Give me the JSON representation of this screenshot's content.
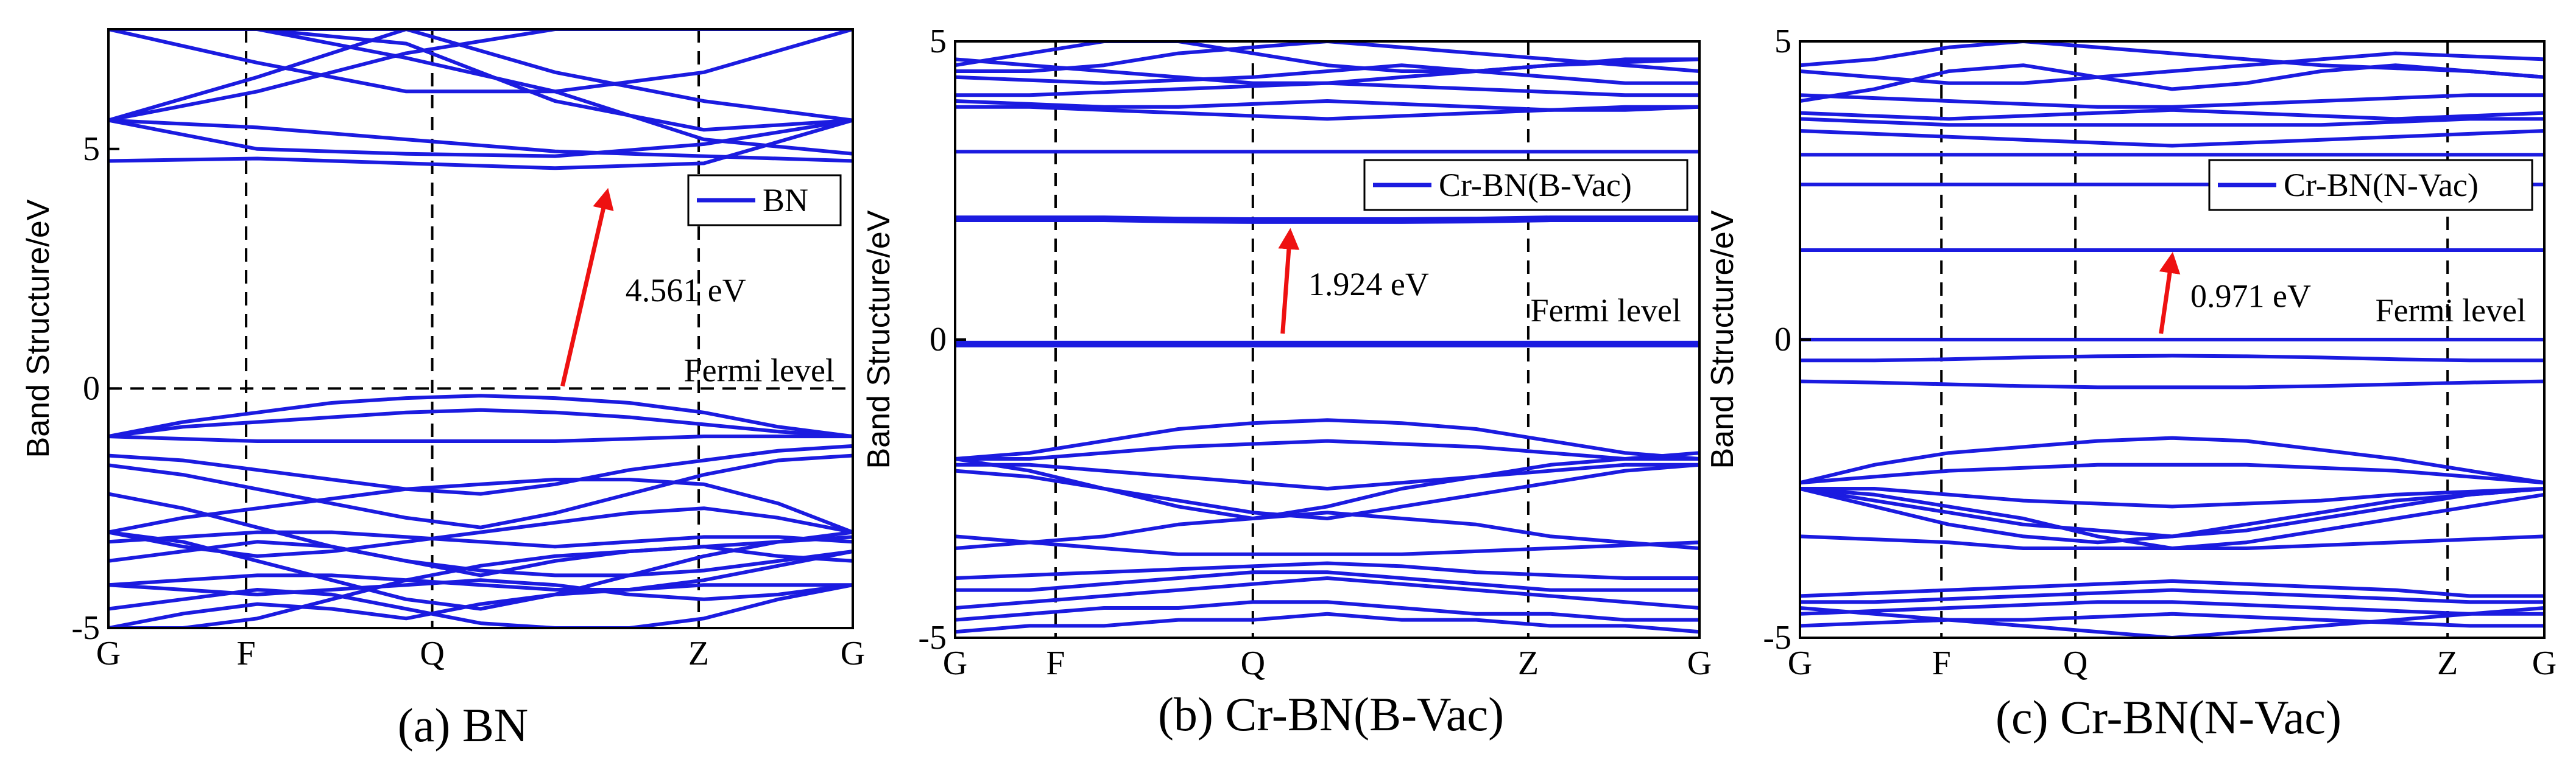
{
  "colors": {
    "band": "#1b1be0",
    "arrow": "#ee1111",
    "axis": "#000000"
  },
  "chart_data": [
    {
      "type": "line",
      "caption": "(a) BN",
      "ylabel": "Band Structure/eV",
      "xticks": [
        "G",
        "F",
        "Q",
        "Z",
        "G"
      ],
      "xtick_positions": [
        0,
        0.185,
        0.435,
        0.793,
        1
      ],
      "ylim": [
        -5,
        7.5
      ],
      "yticks": [
        -5,
        0,
        5
      ],
      "legend": {
        "label": "BN",
        "position": "top-right"
      },
      "fermi_line": true,
      "fermi_label": "Fermi level",
      "gap_label": "4.561 eV",
      "gap_arrow": {
        "x1": 0.61,
        "y1": 0.05,
        "x2": 0.67,
        "y2": 4.1
      },
      "bands": [
        [
          5.6,
          5.45,
          5.2,
          4.95,
          4.85,
          4.75
        ],
        [
          4.75,
          4.8,
          4.7,
          4.6,
          4.7,
          5.6
        ],
        [
          5.6,
          5.0,
          4.9,
          4.85,
          5.1,
          5.6
        ],
        [
          5.6,
          6.2,
          7.0,
          7.5,
          7.5,
          7.5
        ],
        [
          5.6,
          6.5,
          7.5,
          7.5,
          7.5,
          7.5
        ],
        [
          7.5,
          7.5,
          6.9,
          6.2,
          5.2,
          4.9
        ],
        [
          7.5,
          7.5,
          7.2,
          6.0,
          5.4,
          5.6
        ],
        [
          7.5,
          6.8,
          6.2,
          6.2,
          6.6,
          7.5
        ],
        [
          7.5,
          7.5,
          7.5,
          6.6,
          6.0,
          5.6
        ],
        [
          -1.0,
          -0.7,
          -0.5,
          -0.3,
          -0.2,
          -0.15,
          -0.2,
          -0.3,
          -0.5,
          -0.8,
          -1.0
        ],
        [
          -1.0,
          -0.8,
          -0.7,
          -0.6,
          -0.5,
          -0.45,
          -0.5,
          -0.6,
          -0.75,
          -0.9,
          -1.0
        ],
        [
          -1.0,
          -1.05,
          -1.1,
          -1.1,
          -1.1,
          -1.1,
          -1.1,
          -1.05,
          -1.0,
          -1.0,
          -1.0
        ],
        [
          -1.4,
          -1.5,
          -1.7,
          -1.9,
          -2.1,
          -2.2,
          -2.0,
          -1.7,
          -1.5,
          -1.3,
          -1.2
        ],
        [
          -1.6,
          -1.8,
          -2.1,
          -2.4,
          -2.7,
          -2.9,
          -2.6,
          -2.2,
          -1.8,
          -1.5,
          -1.4
        ],
        [
          -3.0,
          -2.7,
          -2.5,
          -2.3,
          -2.1,
          -2.0,
          -1.9,
          -1.9,
          -2.0,
          -2.4,
          -3.0
        ],
        [
          -3.0,
          -3.3,
          -3.5,
          -3.4,
          -3.2,
          -3.0,
          -2.8,
          -2.6,
          -2.5,
          -2.7,
          -3.0
        ],
        [
          -3.2,
          -3.1,
          -3.0,
          -3.0,
          -3.1,
          -3.2,
          -3.3,
          -3.2,
          -3.1,
          -3.1,
          -3.2
        ],
        [
          -3.0,
          -3.2,
          -3.6,
          -4.0,
          -4.4,
          -4.6,
          -4.3,
          -3.9,
          -3.5,
          -3.2,
          -3.0
        ],
        [
          -3.6,
          -3.4,
          -3.2,
          -3.3,
          -3.6,
          -3.9,
          -3.6,
          -3.4,
          -3.3,
          -3.5,
          -3.6
        ],
        [
          -4.1,
          -4.0,
          -3.9,
          -3.9,
          -4.0,
          -4.1,
          -4.2,
          -4.2,
          -4.1,
          -4.1,
          -4.1
        ],
        [
          -4.1,
          -4.2,
          -4.3,
          -4.2,
          -4.1,
          -4.0,
          -4.1,
          -4.3,
          -4.4,
          -4.3,
          -4.1
        ],
        [
          -4.6,
          -4.4,
          -4.2,
          -4.3,
          -4.6,
          -4.9,
          -5.0,
          -5.0,
          -4.8,
          -4.4,
          -4.1
        ],
        [
          -5.0,
          -4.7,
          -4.5,
          -4.6,
          -4.8,
          -4.5,
          -4.3,
          -4.2,
          -4.0,
          -3.7,
          -3.4
        ],
        [
          -5.0,
          -5.0,
          -4.8,
          -4.4,
          -4.0,
          -3.7,
          -3.5,
          -3.4,
          -3.3,
          -3.2,
          -3.1
        ],
        [
          -2.2,
          -2.5,
          -2.9,
          -3.3,
          -3.6,
          -3.8,
          -3.9,
          -3.9,
          -3.8,
          -3.6,
          -3.4
        ]
      ]
    },
    {
      "type": "line",
      "caption": "(b) Cr-BN(B-Vac)",
      "ylabel": "Band Structure/eV",
      "xticks": [
        "G",
        "F",
        "Q",
        "Z",
        "G"
      ],
      "xtick_positions": [
        0,
        0.135,
        0.4,
        0.77,
        1
      ],
      "ylim": [
        -5,
        5
      ],
      "yticks": [
        -5,
        0,
        5
      ],
      "legend": {
        "label": "Cr-BN(B-Vac)",
        "position": "top-right"
      },
      "fermi_line": false,
      "fermi_label": "Fermi level",
      "gap_label": "1.924 eV",
      "gap_arrow": {
        "x1": 0.44,
        "y1": 0.1,
        "x2": 0.45,
        "y2": 1.8
      },
      "bands": [
        [
          -0.1,
          -0.1,
          -0.1,
          -0.1,
          -0.1,
          -0.1,
          -0.1,
          -0.1,
          -0.1,
          -0.1,
          -0.1
        ],
        [
          -0.05,
          -0.05,
          -0.05,
          -0.05,
          -0.05,
          -0.05,
          -0.05,
          -0.05,
          -0.05,
          -0.05,
          -0.05
        ],
        [
          2.0,
          2.0,
          2.0,
          1.98,
          1.97,
          1.97,
          1.97,
          1.98,
          2.0,
          2.0,
          2.0
        ],
        [
          2.05,
          2.05,
          2.05,
          2.03,
          2.02,
          2.02,
          2.02,
          2.03,
          2.05,
          2.05,
          2.05
        ],
        [
          3.15,
          3.15,
          3.15,
          3.15,
          3.15,
          3.15,
          3.15,
          3.15,
          3.15,
          3.15,
          3.15
        ],
        [
          3.9,
          3.9,
          3.85,
          3.8,
          3.75,
          3.7,
          3.75,
          3.8,
          3.85,
          3.9,
          3.9
        ],
        [
          4.0,
          3.95,
          3.9,
          3.9,
          3.95,
          4.0,
          3.95,
          3.9,
          3.85,
          3.85,
          3.9
        ],
        [
          4.1,
          4.1,
          4.15,
          4.2,
          4.25,
          4.3,
          4.25,
          4.2,
          4.15,
          4.1,
          4.1
        ],
        [
          4.4,
          4.35,
          4.3,
          4.35,
          4.4,
          4.5,
          4.6,
          4.5,
          4.4,
          4.3,
          4.3
        ],
        [
          4.5,
          4.5,
          4.6,
          4.8,
          4.9,
          5.0,
          4.9,
          4.8,
          4.7,
          4.6,
          4.5
        ],
        [
          4.6,
          4.8,
          5.0,
          5.0,
          4.8,
          4.6,
          4.5,
          4.5,
          4.6,
          4.65,
          4.7
        ],
        [
          4.7,
          4.6,
          4.5,
          4.4,
          4.3,
          4.3,
          4.4,
          4.5,
          4.6,
          4.7,
          4.7
        ],
        [
          -2.0,
          -1.9,
          -1.7,
          -1.5,
          -1.4,
          -1.35,
          -1.4,
          -1.5,
          -1.7,
          -1.9,
          -2.0
        ],
        [
          -2.0,
          -2.0,
          -1.9,
          -1.8,
          -1.75,
          -1.7,
          -1.75,
          -1.8,
          -1.9,
          -2.0,
          -2.0
        ],
        [
          -2.1,
          -2.1,
          -2.2,
          -2.3,
          -2.4,
          -2.5,
          -2.4,
          -2.3,
          -2.2,
          -2.1,
          -2.1
        ],
        [
          -2.2,
          -2.3,
          -2.5,
          -2.7,
          -2.9,
          -3.0,
          -2.8,
          -2.6,
          -2.4,
          -2.2,
          -2.1
        ],
        [
          -2.0,
          -2.2,
          -2.5,
          -2.8,
          -3.0,
          -2.8,
          -2.5,
          -2.3,
          -2.1,
          -2.0,
          -1.9
        ],
        [
          -3.5,
          -3.4,
          -3.3,
          -3.1,
          -3.0,
          -2.9,
          -3.0,
          -3.1,
          -3.3,
          -3.4,
          -3.5
        ],
        [
          -3.3,
          -3.4,
          -3.5,
          -3.6,
          -3.6,
          -3.6,
          -3.6,
          -3.55,
          -3.5,
          -3.45,
          -3.4
        ],
        [
          -4.0,
          -3.95,
          -3.9,
          -3.85,
          -3.8,
          -3.75,
          -3.8,
          -3.9,
          -3.95,
          -4.0,
          -4.0
        ],
        [
          -4.2,
          -4.2,
          -4.1,
          -4.0,
          -3.9,
          -3.9,
          -4.0,
          -4.1,
          -4.2,
          -4.2,
          -4.2
        ],
        [
          -4.5,
          -4.4,
          -4.3,
          -4.2,
          -4.1,
          -4.0,
          -4.1,
          -4.2,
          -4.3,
          -4.4,
          -4.5
        ],
        [
          -4.7,
          -4.6,
          -4.5,
          -4.5,
          -4.4,
          -4.4,
          -4.5,
          -4.6,
          -4.6,
          -4.7,
          -4.7
        ],
        [
          -4.9,
          -4.8,
          -4.8,
          -4.7,
          -4.7,
          -4.6,
          -4.7,
          -4.7,
          -4.8,
          -4.8,
          -4.9
        ]
      ]
    },
    {
      "type": "line",
      "caption": "(c) Cr-BN(N-Vac)",
      "ylabel": "Band Structure/eV",
      "xticks": [
        "G",
        "F",
        "Q",
        "Z",
        "G"
      ],
      "xtick_positions": [
        0,
        0.19,
        0.37,
        0.87,
        1
      ],
      "ylim": [
        -5,
        5
      ],
      "yticks": [
        -5,
        0,
        5
      ],
      "legend": {
        "label": "Cr-BN(N-Vac)",
        "position": "top-right"
      },
      "fermi_line": false,
      "fermi_label": "Fermi level",
      "gap_label": "0.971 eV",
      "gap_arrow": {
        "x1": 0.485,
        "y1": 0.1,
        "x2": 0.5,
        "y2": 1.4
      },
      "bands": [
        [
          0.0,
          0.0,
          0.0,
          0.0,
          0.0,
          0.0,
          0.0,
          0.0,
          0.0,
          0.0,
          0.0
        ],
        [
          -0.35,
          -0.35,
          -0.33,
          -0.3,
          -0.28,
          -0.27,
          -0.28,
          -0.3,
          -0.33,
          -0.35,
          -0.35
        ],
        [
          -0.7,
          -0.72,
          -0.75,
          -0.78,
          -0.8,
          -0.8,
          -0.8,
          -0.78,
          -0.75,
          -0.72,
          -0.7
        ],
        [
          1.5,
          1.5,
          1.5,
          1.5,
          1.5,
          1.5,
          1.5,
          1.5,
          1.5,
          1.5,
          1.5
        ],
        [
          2.6,
          2.6,
          2.6,
          2.6,
          2.6,
          2.6,
          2.6,
          2.6,
          2.6,
          2.6,
          2.6
        ],
        [
          3.1,
          3.1,
          3.1,
          3.1,
          3.1,
          3.1,
          3.1,
          3.1,
          3.1,
          3.1,
          3.1
        ],
        [
          3.5,
          3.45,
          3.4,
          3.35,
          3.3,
          3.25,
          3.3,
          3.35,
          3.4,
          3.45,
          3.5
        ],
        [
          3.7,
          3.65,
          3.6,
          3.6,
          3.6,
          3.6,
          3.6,
          3.6,
          3.65,
          3.7,
          3.7
        ],
        [
          3.8,
          3.75,
          3.7,
          3.75,
          3.8,
          3.85,
          3.8,
          3.75,
          3.7,
          3.75,
          3.8
        ],
        [
          4.1,
          4.05,
          4.0,
          3.95,
          3.9,
          3.9,
          3.95,
          4.0,
          4.05,
          4.1,
          4.1
        ],
        [
          4.0,
          4.2,
          4.5,
          4.6,
          4.4,
          4.2,
          4.3,
          4.5,
          4.6,
          4.5,
          4.4
        ],
        [
          4.5,
          4.4,
          4.3,
          4.3,
          4.4,
          4.5,
          4.6,
          4.7,
          4.8,
          4.75,
          4.7
        ],
        [
          4.6,
          4.7,
          4.9,
          5.0,
          4.9,
          4.8,
          4.7,
          4.6,
          4.55,
          4.5,
          4.4
        ],
        [
          -2.4,
          -2.1,
          -1.9,
          -1.8,
          -1.7,
          -1.65,
          -1.7,
          -1.85,
          -2.0,
          -2.2,
          -2.4
        ],
        [
          -2.4,
          -2.3,
          -2.2,
          -2.15,
          -2.1,
          -2.1,
          -2.1,
          -2.15,
          -2.2,
          -2.3,
          -2.4
        ],
        [
          -2.5,
          -2.5,
          -2.6,
          -2.7,
          -2.75,
          -2.8,
          -2.75,
          -2.7,
          -2.6,
          -2.55,
          -2.5
        ],
        [
          -2.5,
          -2.7,
          -2.9,
          -3.1,
          -3.2,
          -3.3,
          -3.2,
          -3.0,
          -2.8,
          -2.6,
          -2.5
        ],
        [
          -2.5,
          -2.8,
          -3.1,
          -3.3,
          -3.4,
          -3.3,
          -3.1,
          -2.9,
          -2.7,
          -2.6,
          -2.5
        ],
        [
          -3.3,
          -3.35,
          -3.4,
          -3.5,
          -3.5,
          -3.5,
          -3.5,
          -3.45,
          -3.4,
          -3.35,
          -3.3
        ],
        [
          -2.5,
          -2.6,
          -2.8,
          -3.0,
          -3.3,
          -3.5,
          -3.4,
          -3.2,
          -3.0,
          -2.8,
          -2.6
        ],
        [
          -4.3,
          -4.25,
          -4.2,
          -4.15,
          -4.1,
          -4.05,
          -4.1,
          -4.15,
          -4.2,
          -4.3,
          -4.3
        ],
        [
          -4.4,
          -4.4,
          -4.35,
          -4.3,
          -4.25,
          -4.2,
          -4.25,
          -4.3,
          -4.35,
          -4.4,
          -4.4
        ],
        [
          -4.6,
          -4.55,
          -4.5,
          -4.45,
          -4.4,
          -4.4,
          -4.45,
          -4.5,
          -4.55,
          -4.6,
          -4.6
        ],
        [
          -4.8,
          -4.75,
          -4.7,
          -4.7,
          -4.65,
          -4.6,
          -4.65,
          -4.7,
          -4.75,
          -4.8,
          -4.8
        ],
        [
          -4.5,
          -4.6,
          -4.7,
          -4.8,
          -4.9,
          -5.0,
          -4.9,
          -4.8,
          -4.7,
          -4.6,
          -4.5
        ]
      ]
    }
  ]
}
